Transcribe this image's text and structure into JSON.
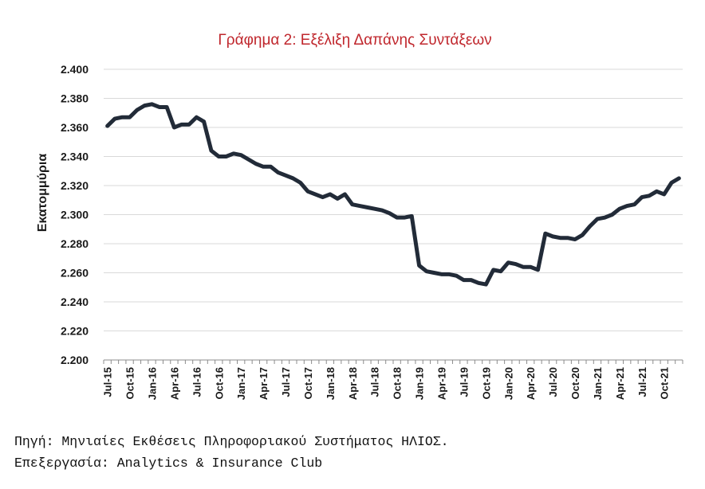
{
  "chart_data": {
    "type": "line",
    "title": "Γράφημα 2: Εξέλιξη Δαπάνης Συντάξεων",
    "ylabel": "Εκατομμύρια",
    "xlabel": "",
    "ylim": [
      2200,
      2400
    ],
    "yticks": [
      2200,
      2220,
      2240,
      2260,
      2280,
      2300,
      2320,
      2340,
      2360,
      2380,
      2400
    ],
    "ytick_labels": [
      "2.200",
      "2.220",
      "2.240",
      "2.260",
      "2.280",
      "2.300",
      "2.320",
      "2.340",
      "2.360",
      "2.380",
      "2.400"
    ],
    "xtick_labels": [
      "Jul-15",
      "Oct-15",
      "Jan-16",
      "Apr-16",
      "Jul-16",
      "Oct-16",
      "Jan-17",
      "Apr-17",
      "Jul-17",
      "Oct-17",
      "Jan-18",
      "Apr-18",
      "Jul-18",
      "Oct-18",
      "Jan-19",
      "Apr-19",
      "Jul-19",
      "Oct-19",
      "Jan-20",
      "Apr-20",
      "Jul-20",
      "Oct-20",
      "Jan-21",
      "Apr-21",
      "Jul-21",
      "Oct-21"
    ],
    "grid": "horizontal",
    "line_color": "#222b38",
    "series": [
      {
        "values": [
          2361,
          2366,
          2367,
          2367,
          2372,
          2375,
          2376,
          2374,
          2374,
          2360,
          2362,
          2362,
          2367,
          2364,
          2344,
          2340,
          2340,
          2342,
          2341,
          2338,
          2335,
          2333,
          2333,
          2329,
          2327,
          2325,
          2322,
          2316,
          2314,
          2312,
          2314,
          2311,
          2314,
          2307,
          2306,
          2305,
          2304,
          2303,
          2301,
          2298,
          2298,
          2299,
          2265,
          2261,
          2260,
          2259,
          2259,
          2258,
          2255,
          2255,
          2253,
          2252,
          2262,
          2261,
          2267,
          2266,
          2264,
          2264,
          2262,
          2287,
          2285,
          2284,
          2284,
          2283,
          2286,
          2292,
          2297,
          2298,
          2300,
          2304,
          2306,
          2307,
          2312,
          2313,
          2316,
          2314,
          2322,
          2325
        ]
      }
    ]
  },
  "footer": {
    "source": "Πηγή: Μηνιαίες Εκθέσεις Πληροφοριακού Συστήματος ΗΛΙΟΣ.",
    "processing": "Επεξεργασία: Analytics & Insurance Club"
  }
}
